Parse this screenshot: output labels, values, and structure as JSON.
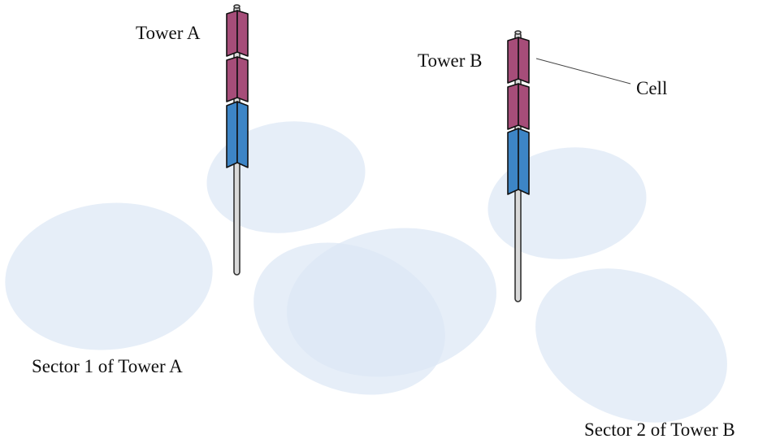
{
  "labels": {
    "tower_a": "Tower A",
    "tower_b": "Tower B",
    "cell": "Cell",
    "sector_1_tower_a": "Sector 1 of Tower A",
    "sector_2_tower_b": "Sector 2 of Tower B"
  },
  "colors": {
    "sector_fill": "#dce8f5",
    "cell_panel": "#a64d79",
    "sector_panel": "#3d85c6",
    "pole": "#d9d9d9",
    "outline": "#111111"
  }
}
